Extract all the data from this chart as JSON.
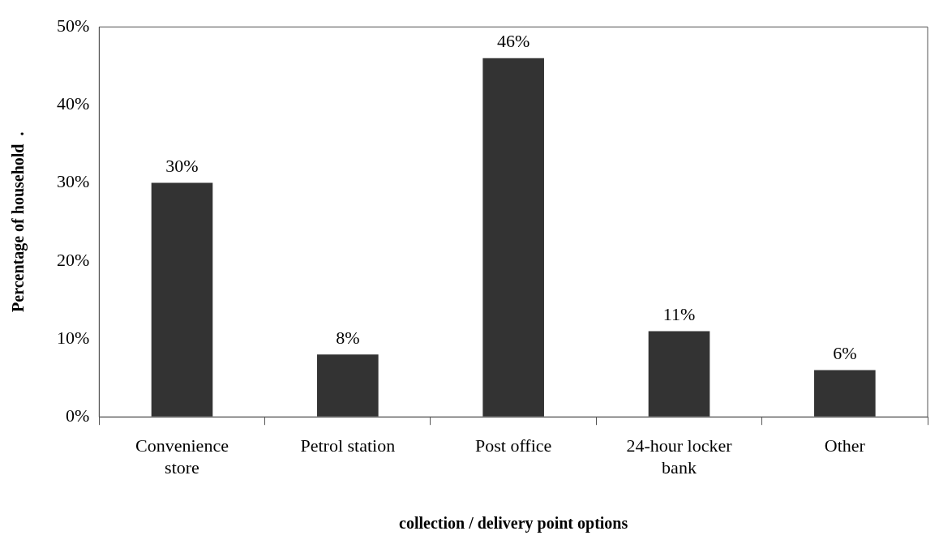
{
  "chart_data": {
    "type": "bar",
    "xlabel": "collection / delivery point options",
    "ylabel": "Percentage of household  .",
    "categories": [
      "Convenience store",
      "Petrol station",
      "Post office",
      "24-hour locker bank",
      "Other"
    ],
    "values": [
      30,
      8,
      46,
      11,
      6
    ],
    "color": "#333333",
    "value_labels": [
      "30%",
      "8%",
      "46%",
      "11%",
      "6%"
    ],
    "ylim": [
      0,
      50
    ],
    "yticks": [
      {
        "value": 0,
        "label": "0%"
      },
      {
        "value": 10,
        "label": "10%"
      },
      {
        "value": 20,
        "label": "20%"
      },
      {
        "value": 30,
        "label": "30%"
      },
      {
        "value": 40,
        "label": "40%"
      },
      {
        "value": 50,
        "label": "50%"
      }
    ],
    "grid": false,
    "legend": false
  }
}
